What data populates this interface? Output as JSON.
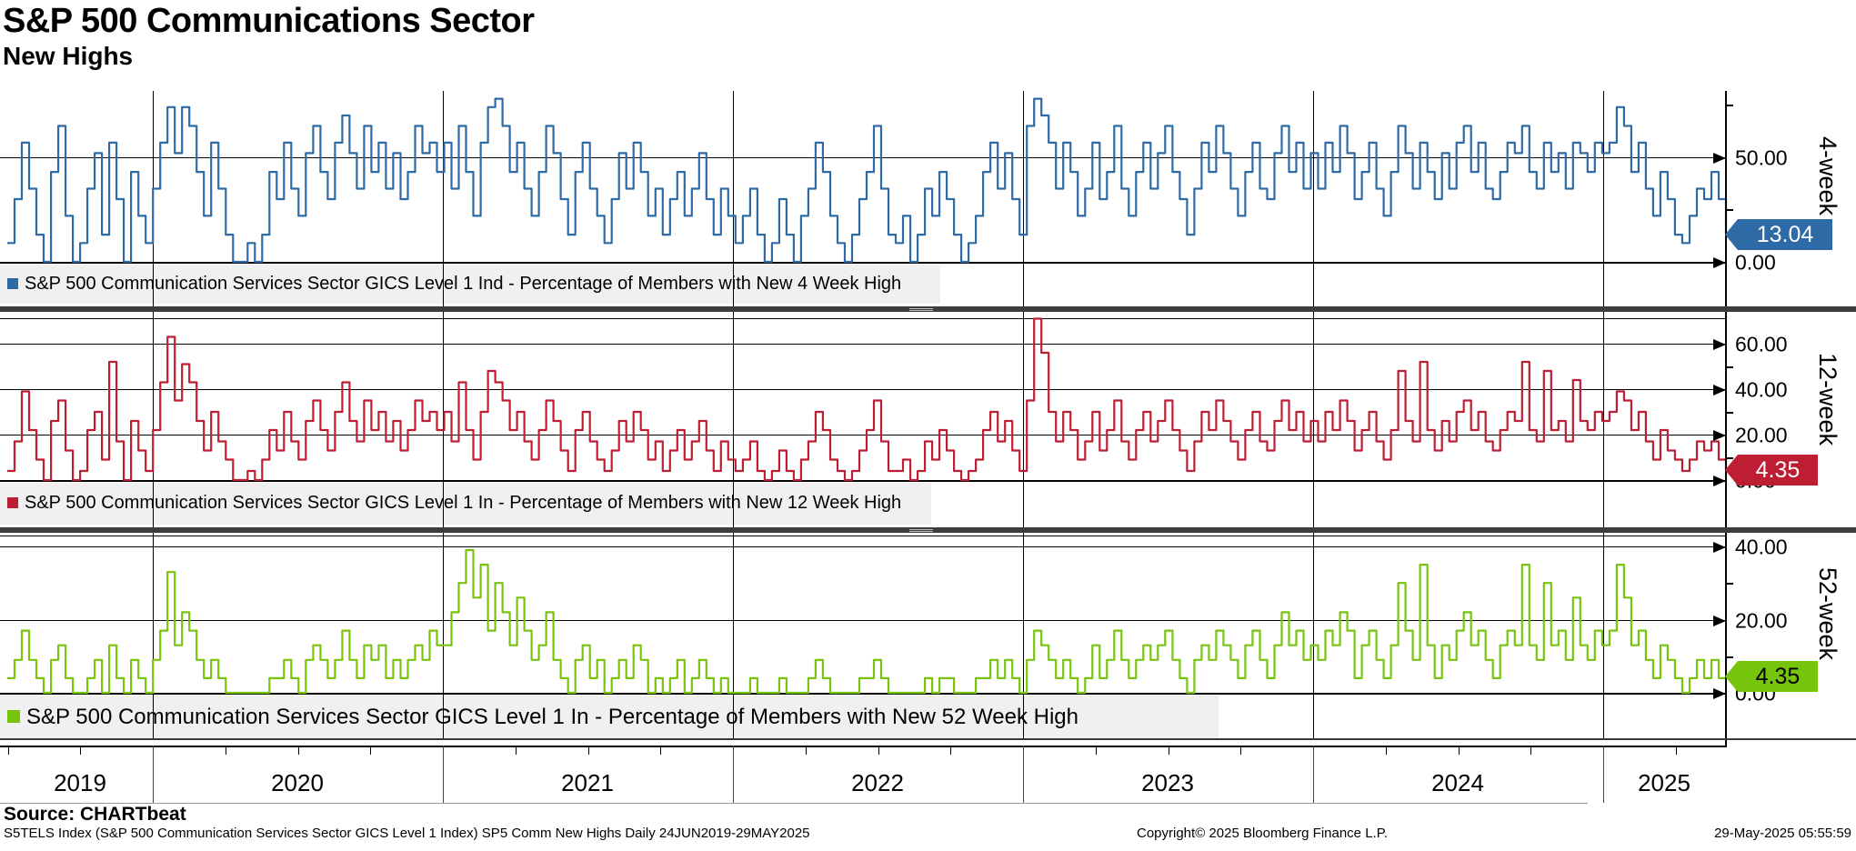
{
  "header": {
    "title": "S&P 500 Communications Sector",
    "subtitle": "New Highs"
  },
  "panels": [
    {
      "axis_title": "4-week",
      "legend": "S&P 500 Communication Services Sector GICS Level 1 Ind - Percentage of Members with New 4 Week High",
      "color": "#2e6aa5",
      "badge": {
        "value": "13.04",
        "text_color": "#ffffff"
      },
      "yticks": [
        {
          "label": "50.00",
          "value": 50
        },
        {
          "label": "0.00",
          "value": 0
        }
      ],
      "minor_tick_values": [
        75,
        25
      ]
    },
    {
      "axis_title": "12-week",
      "legend": "S&P 500 Communication Services Sector GICS Level 1 In - Percentage of Members with New 12 Week High",
      "color": "#be1e33",
      "badge": {
        "value": "4.35",
        "text_color": "#ffffff"
      },
      "yticks": [
        {
          "label": "60.00",
          "value": 60
        },
        {
          "label": "40.00",
          "value": 40
        },
        {
          "label": "20.00",
          "value": 20
        },
        {
          "label": "0.00",
          "value": 0
        }
      ],
      "minor_tick_values": [
        50,
        30,
        10
      ]
    },
    {
      "axis_title": "52-week",
      "legend": "S&P 500 Communication Services Sector GICS Level 1 In - Percentage of Members with New 52 Week High",
      "color": "#77c40d",
      "badge": {
        "value": "4.35",
        "text_color": "#000000"
      },
      "yticks": [
        {
          "label": "40.00",
          "value": 40
        },
        {
          "label": "20.00",
          "value": 20
        },
        {
          "label": "0.00",
          "value": 0
        }
      ],
      "minor_tick_values": [
        30,
        10
      ]
    }
  ],
  "x_axis": {
    "years": [
      "2019",
      "2020",
      "2021",
      "2022",
      "2023",
      "2024",
      "2025"
    ]
  },
  "footer": {
    "source": "Source: CHARTbeat",
    "description": "S5TELS Index (S&P 500 Communication Services Sector GICS Level 1 Index) SP5 Comm New Highs  Daily 24JUN2019-29MAY2025",
    "copyright": "Copyright© 2025 Bloomberg Finance L.P.",
    "timestamp": "29-May-2025 05:55:59"
  },
  "chart_data": [
    {
      "type": "line",
      "name": "Percentage of Members with New 4 Week High",
      "color": "#2e6aa5",
      "x_range": [
        "24JUN2019",
        "29MAY2025"
      ],
      "ylim": [
        0,
        82
      ],
      "last_value": 13.04,
      "values": [
        9,
        30,
        57,
        35,
        13,
        0,
        43,
        65,
        22,
        0,
        9,
        35,
        52,
        13,
        57,
        30,
        0,
        43,
        22,
        9,
        35,
        57,
        74,
        52,
        74,
        65,
        43,
        22,
        57,
        35,
        13,
        0,
        0,
        9,
        0,
        13,
        43,
        30,
        57,
        35,
        22,
        52,
        65,
        43,
        30,
        57,
        70,
        52,
        35,
        65,
        43,
        57,
        35,
        52,
        30,
        43,
        65,
        52,
        57,
        43,
        57,
        35,
        65,
        43,
        22,
        57,
        74,
        78,
        65,
        43,
        57,
        35,
        22,
        43,
        65,
        52,
        30,
        13,
        43,
        57,
        35,
        22,
        9,
        30,
        52,
        35,
        57,
        43,
        22,
        35,
        13,
        30,
        43,
        22,
        35,
        52,
        30,
        13,
        35,
        22,
        9,
        22,
        35,
        13,
        0,
        9,
        30,
        13,
        0,
        22,
        35,
        57,
        43,
        22,
        9,
        0,
        13,
        30,
        43,
        65,
        35,
        13,
        9,
        22,
        0,
        13,
        35,
        22,
        43,
        30,
        13,
        0,
        9,
        22,
        43,
        57,
        35,
        52,
        30,
        13,
        65,
        78,
        70,
        57,
        35,
        57,
        43,
        22,
        35,
        57,
        30,
        43,
        65,
        35,
        22,
        43,
        57,
        35,
        52,
        65,
        43,
        30,
        13,
        35,
        57,
        43,
        65,
        52,
        35,
        22,
        43,
        57,
        35,
        30,
        52,
        65,
        43,
        57,
        35,
        52,
        35,
        57,
        43,
        65,
        52,
        30,
        43,
        57,
        35,
        22,
        43,
        65,
        52,
        35,
        57,
        43,
        30,
        52,
        35,
        57,
        65,
        43,
        57,
        35,
        30,
        43,
        57,
        52,
        65,
        43,
        35,
        57,
        43,
        52,
        35,
        57,
        52,
        43,
        57,
        52,
        57,
        74,
        65,
        43,
        57,
        35,
        22,
        43,
        30,
        13,
        9,
        22,
        35,
        30,
        43,
        30,
        13.04
      ]
    },
    {
      "type": "line",
      "name": "Percentage of Members with New 12 Week High",
      "color": "#be1e33",
      "x_range": [
        "24JUN2019",
        "29MAY2025"
      ],
      "ylim": [
        0,
        71
      ],
      "last_value": 4.35,
      "values": [
        4,
        17,
        39,
        22,
        9,
        0,
        26,
        35,
        13,
        0,
        4,
        22,
        30,
        9,
        52,
        17,
        0,
        26,
        13,
        4,
        22,
        43,
        63,
        35,
        51,
        43,
        26,
        13,
        30,
        17,
        9,
        0,
        0,
        4,
        0,
        9,
        22,
        13,
        30,
        17,
        9,
        26,
        35,
        22,
        13,
        30,
        43,
        26,
        17,
        35,
        22,
        30,
        17,
        26,
        13,
        22,
        35,
        26,
        30,
        22,
        30,
        17,
        43,
        22,
        9,
        30,
        48,
        43,
        35,
        22,
        30,
        17,
        9,
        22,
        35,
        26,
        13,
        4,
        22,
        30,
        17,
        9,
        4,
        13,
        26,
        17,
        30,
        22,
        9,
        17,
        4,
        13,
        22,
        9,
        17,
        26,
        13,
        4,
        17,
        9,
        4,
        9,
        17,
        4,
        0,
        4,
        13,
        4,
        0,
        9,
        17,
        30,
        22,
        9,
        4,
        0,
        4,
        13,
        22,
        35,
        17,
        4,
        4,
        9,
        0,
        4,
        17,
        9,
        22,
        13,
        4,
        0,
        4,
        9,
        22,
        30,
        17,
        26,
        13,
        4,
        35,
        71,
        56,
        30,
        17,
        30,
        22,
        9,
        17,
        30,
        13,
        22,
        35,
        17,
        9,
        22,
        30,
        17,
        26,
        35,
        22,
        13,
        4,
        17,
        30,
        22,
        35,
        26,
        17,
        9,
        22,
        30,
        17,
        13,
        26,
        35,
        22,
        30,
        17,
        26,
        17,
        30,
        22,
        35,
        26,
        13,
        22,
        30,
        17,
        9,
        22,
        48,
        26,
        17,
        52,
        22,
        13,
        26,
        17,
        30,
        35,
        22,
        30,
        17,
        13,
        22,
        30,
        26,
        52,
        22,
        17,
        48,
        22,
        26,
        17,
        44,
        26,
        22,
        30,
        26,
        30,
        39,
        35,
        22,
        30,
        17,
        9,
        22,
        13,
        9,
        4,
        9,
        17,
        13,
        17,
        9,
        4.35
      ]
    },
    {
      "type": "line",
      "name": "Percentage of Members with New 52 Week High",
      "color": "#77c40d",
      "x_range": [
        "24JUN2019",
        "29MAY2025"
      ],
      "ylim": [
        0,
        43
      ],
      "last_value": 4.35,
      "values": [
        4,
        9,
        17,
        9,
        4,
        0,
        9,
        13,
        4,
        0,
        0,
        4,
        9,
        0,
        13,
        4,
        0,
        9,
        4,
        0,
        9,
        17,
        33,
        13,
        22,
        17,
        9,
        4,
        9,
        4,
        0,
        0,
        0,
        0,
        0,
        0,
        4,
        4,
        9,
        4,
        0,
        9,
        13,
        9,
        4,
        9,
        17,
        9,
        4,
        13,
        9,
        13,
        4,
        9,
        4,
        9,
        13,
        9,
        17,
        13,
        13,
        22,
        30,
        39,
        26,
        35,
        17,
        30,
        22,
        13,
        26,
        17,
        9,
        13,
        22,
        9,
        4,
        0,
        9,
        13,
        4,
        9,
        0,
        4,
        9,
        4,
        13,
        9,
        0,
        4,
        0,
        4,
        9,
        0,
        4,
        9,
        4,
        0,
        4,
        0,
        0,
        0,
        4,
        0,
        0,
        0,
        4,
        0,
        0,
        0,
        4,
        9,
        4,
        0,
        0,
        0,
        0,
        4,
        4,
        9,
        4,
        0,
        0,
        0,
        0,
        0,
        4,
        0,
        4,
        4,
        0,
        0,
        0,
        4,
        4,
        9,
        4,
        9,
        4,
        0,
        9,
        17,
        13,
        9,
        4,
        9,
        4,
        0,
        4,
        13,
        4,
        9,
        17,
        9,
        4,
        9,
        13,
        9,
        13,
        17,
        9,
        4,
        0,
        9,
        13,
        9,
        17,
        13,
        9,
        4,
        13,
        17,
        9,
        4,
        13,
        22,
        13,
        17,
        9,
        13,
        9,
        17,
        13,
        22,
        17,
        4,
        13,
        17,
        9,
        4,
        13,
        30,
        17,
        9,
        35,
        13,
        4,
        13,
        9,
        17,
        22,
        13,
        17,
        9,
        4,
        13,
        17,
        13,
        35,
        13,
        9,
        30,
        13,
        17,
        9,
        26,
        13,
        9,
        17,
        13,
        17,
        35,
        26,
        13,
        17,
        9,
        4,
        13,
        9,
        4,
        0,
        4,
        9,
        4,
        9,
        4,
        4.35
      ]
    }
  ]
}
